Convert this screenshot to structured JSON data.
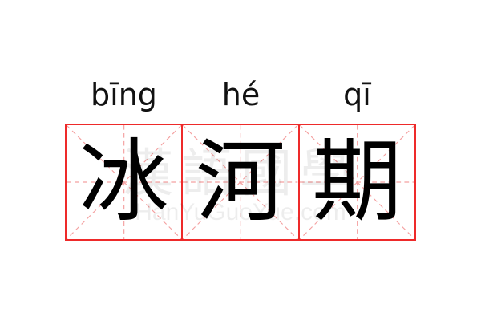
{
  "word": {
    "syllables": [
      {
        "pinyin": "bīng",
        "char": "冰"
      },
      {
        "pinyin": "hé",
        "char": "河"
      },
      {
        "pinyin": "qī",
        "char": "期"
      }
    ]
  },
  "watermark": {
    "chinese": "漢語國學",
    "latin": "HanYuGuoYue.com"
  },
  "colors": {
    "grid_border": "#ee2a2a",
    "guide_lines": "#f4a0a0"
  }
}
